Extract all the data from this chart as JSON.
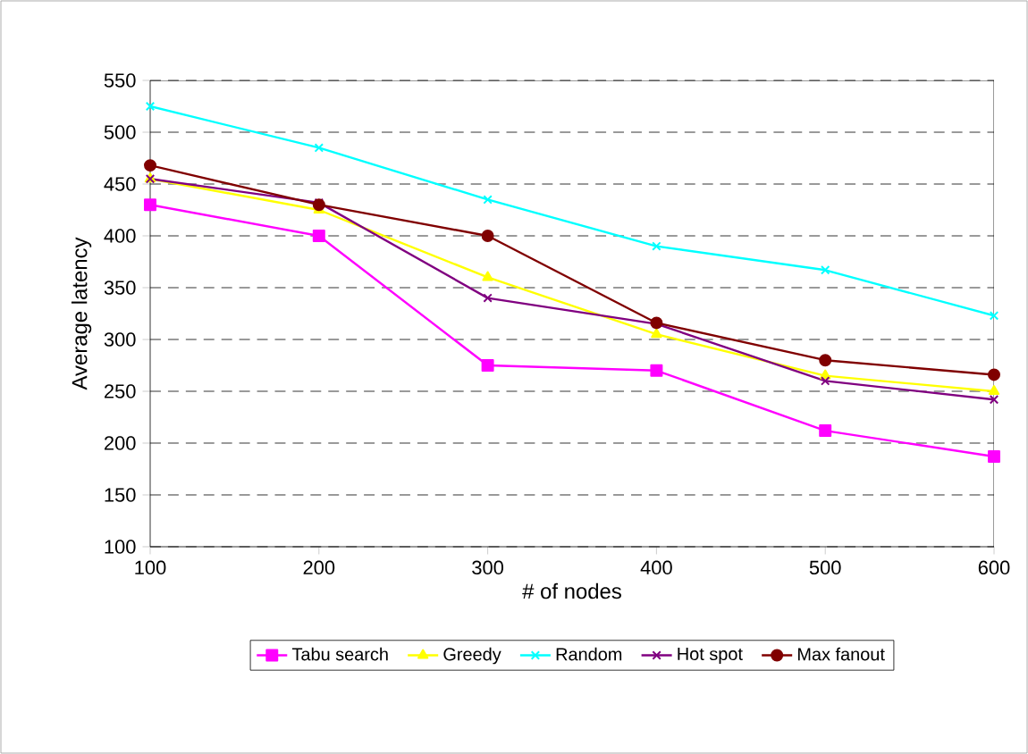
{
  "chart_data": {
    "type": "line",
    "xlabel": "# of nodes",
    "ylabel": "Average latency",
    "x": [
      100,
      200,
      300,
      400,
      500,
      600
    ],
    "series": [
      {
        "name": "Tabu search",
        "color": "#ff00ff",
        "marker": "square",
        "values": [
          430,
          400,
          275,
          270,
          212,
          187
        ]
      },
      {
        "name": "Greedy",
        "color": "#ffff00",
        "marker": "triangle",
        "values": [
          455,
          425,
          360,
          305,
          265,
          250
        ]
      },
      {
        "name": "Random",
        "color": "#00ffff",
        "marker": "cross",
        "values": [
          525,
          485,
          435,
          390,
          367,
          323
        ]
      },
      {
        "name": "Hot spot",
        "color": "#800080",
        "marker": "cross",
        "values": [
          455,
          432,
          340,
          315,
          260,
          242
        ]
      },
      {
        "name": "Max fanout",
        "color": "#800000",
        "marker": "circle",
        "values": [
          468,
          430,
          400,
          316,
          280,
          266
        ]
      }
    ],
    "xlim": [
      100,
      600
    ],
    "xticks": [
      100,
      200,
      300,
      400,
      500,
      600
    ],
    "ylim": [
      100,
      550
    ],
    "yticks": [
      100,
      150,
      200,
      250,
      300,
      350,
      400,
      450,
      500,
      550
    ],
    "grid": "y",
    "legend": "bottom",
    "line_style": "solid"
  }
}
